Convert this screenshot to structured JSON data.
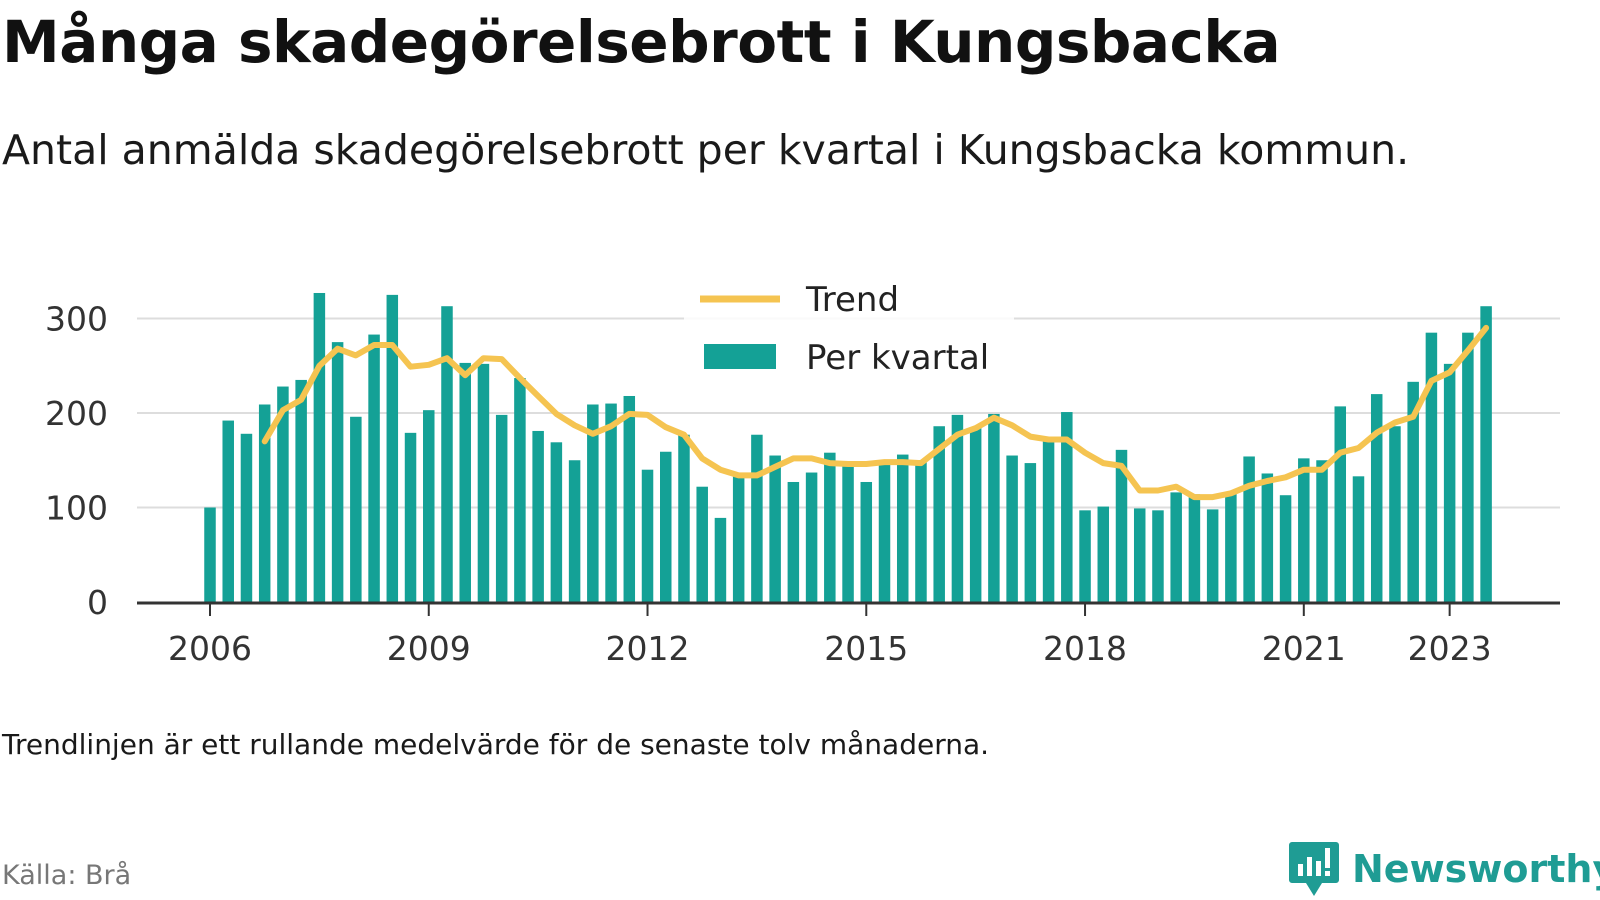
{
  "title": "Många skadegörelsebrott i Kungsbacka",
  "subtitle": "Antal anmälda skadegörelsebrott per kvartal i Kungsbacka kommun.",
  "note": "Trendlinjen är ett rullande medelvärde för de senaste tolv månaderna.",
  "source": "Källa: Brå",
  "logo_text": "Newsworthy",
  "colors": {
    "bar": "#14a196",
    "trend": "#f5c451",
    "grid": "#dddddd",
    "axis": "#333333"
  },
  "chart_data": {
    "type": "bar",
    "x_ticks": [
      "2006",
      "2009",
      "2012",
      "2015",
      "2018",
      "2021",
      "2023"
    ],
    "y_ticks": [
      "0",
      "100",
      "200",
      "300"
    ],
    "ylim": [
      0,
      340
    ],
    "legend_position": "top-center",
    "series": [
      {
        "name": "Per kvartal",
        "type": "bar",
        "start": "2006 Q1",
        "values": [
          100,
          192,
          178,
          209,
          228,
          235,
          327,
          275,
          196,
          283,
          325,
          179,
          203,
          313,
          253,
          252,
          198,
          237,
          181,
          169,
          150,
          209,
          210,
          218,
          140,
          159,
          177,
          122,
          89,
          134,
          177,
          155,
          127,
          137,
          158,
          149,
          127,
          145,
          156,
          150,
          186,
          198,
          185,
          199,
          155,
          147,
          170,
          201,
          97,
          101,
          161,
          99,
          97,
          116,
          114,
          98,
          115,
          154,
          136,
          113,
          152,
          150,
          207,
          133,
          220,
          186,
          233,
          285,
          252,
          285,
          313
        ]
      },
      {
        "name": "Trend",
        "type": "line",
        "start": "2006 Q4",
        "values": [
          170,
          203,
          214,
          250,
          268,
          261,
          272,
          272,
          249,
          251,
          258,
          240,
          258,
          257,
          237,
          218,
          199,
          187,
          178,
          186,
          199,
          198,
          185,
          177,
          152,
          140,
          134,
          134,
          143,
          152,
          152,
          147,
          146,
          146,
          148,
          148,
          147,
          162,
          177,
          184,
          195,
          187,
          175,
          172,
          172,
          158,
          147,
          144,
          118,
          118,
          122,
          111,
          111,
          115,
          123,
          128,
          132,
          140,
          140,
          158,
          163,
          179,
          190,
          196,
          234,
          243,
          266,
          290
        ]
      }
    ]
  }
}
